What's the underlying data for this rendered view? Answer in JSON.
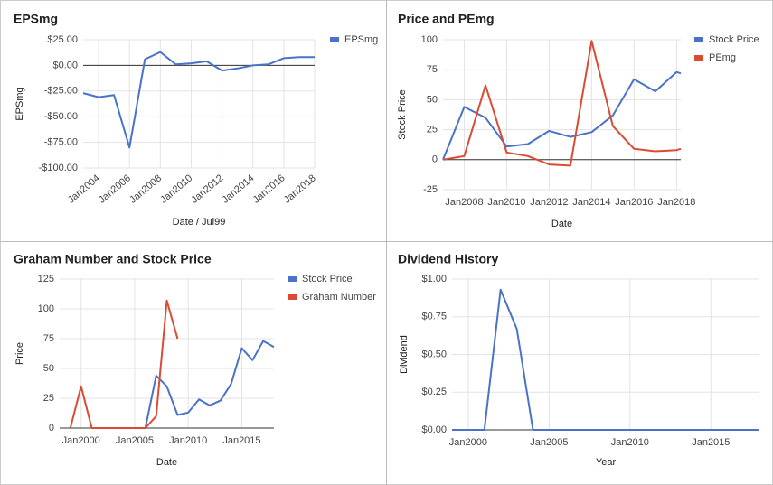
{
  "chart_data": [
    {
      "type": "line",
      "title": "EPSmg",
      "xlabel": "Date / Jul99",
      "ylabel": "EPSmg",
      "xlim": [
        2003,
        2018
      ],
      "xticks": [
        {
          "value": 2004,
          "label": "Jan2004"
        },
        {
          "value": 2006,
          "label": "Jan2006"
        },
        {
          "value": 2008,
          "label": "Jan2008"
        },
        {
          "value": 2010,
          "label": "Jan2010"
        },
        {
          "value": 2012,
          "label": "Jan2012"
        },
        {
          "value": 2014,
          "label": "Jan2014"
        },
        {
          "value": 2016,
          "label": "Jan2016"
        },
        {
          "value": 2018,
          "label": "Jan2018"
        }
      ],
      "ylim": [
        -100,
        25
      ],
      "yticks": [
        {
          "value": -100,
          "label": "-$100.00"
        },
        {
          "value": -75,
          "label": "-$75.00"
        },
        {
          "value": -50,
          "label": "-$50.00"
        },
        {
          "value": -25,
          "label": "-$25.00"
        },
        {
          "value": 0,
          "label": "$0.00"
        },
        {
          "value": 25,
          "label": "$25.00"
        }
      ],
      "grid": true,
      "series": [
        {
          "name": "EPSmg",
          "color": "#4a72c9",
          "x": [
            2003,
            2004,
            2005,
            2006,
            2007,
            2008,
            2009,
            2010,
            2011,
            2012,
            2013,
            2014,
            2015,
            2016,
            2017,
            2018
          ],
          "values": [
            -27,
            -31,
            -29,
            -80,
            6,
            13,
            1,
            2,
            4,
            -5,
            -3,
            0,
            1,
            7,
            8,
            8
          ]
        }
      ]
    },
    {
      "type": "line",
      "title": "Price and PEmg",
      "xlabel": "Date",
      "ylabel": "Stock Price",
      "xlim": [
        2007,
        2018.2
      ],
      "xticks": [
        {
          "value": 2008,
          "label": "Jan2008"
        },
        {
          "value": 2010,
          "label": "Jan2010"
        },
        {
          "value": 2012,
          "label": "Jan2012"
        },
        {
          "value": 2014,
          "label": "Jan2014"
        },
        {
          "value": 2016,
          "label": "Jan2016"
        },
        {
          "value": 2018,
          "label": "Jan2018"
        }
      ],
      "ylim": [
        -25,
        100
      ],
      "yticks": [
        -25,
        0,
        25,
        50,
        75,
        100
      ],
      "grid": true,
      "series": [
        {
          "name": "Stock Price",
          "color": "#4a72c9",
          "x": [
            2007,
            2008,
            2009,
            2010,
            2011,
            2012,
            2013,
            2014,
            2015,
            2016,
            2017,
            2018,
            2018.2
          ],
          "values": [
            0,
            44,
            35,
            11,
            13,
            24,
            19,
            23,
            37,
            67,
            57,
            73,
            72
          ]
        },
        {
          "name": "PEmg",
          "color": "#db4b33",
          "x": [
            2007,
            2008,
            2009,
            2010,
            2011,
            2012,
            2013,
            2014,
            2015,
            2016,
            2017,
            2018,
            2018.2
          ],
          "values": [
            0,
            3,
            62,
            6,
            3,
            -4,
            -5,
            99,
            28,
            9,
            7,
            8,
            9
          ]
        }
      ]
    },
    {
      "type": "line",
      "title": "Graham Number and Stock Price",
      "xlabel": "Date",
      "ylabel": "Price",
      "xlim": [
        1998,
        2018
      ],
      "xticks": [
        {
          "value": 2000,
          "label": "Jan2000"
        },
        {
          "value": 2005,
          "label": "Jan2005"
        },
        {
          "value": 2010,
          "label": "Jan2010"
        },
        {
          "value": 2015,
          "label": "Jan2015"
        }
      ],
      "ylim": [
        0,
        125
      ],
      "yticks": [
        0,
        25,
        50,
        75,
        100,
        125
      ],
      "grid": true,
      "series": [
        {
          "name": "Stock Price",
          "color": "#4a72c9",
          "x": [
            2006,
            2007,
            2008,
            2009,
            2010,
            2011,
            2012,
            2013,
            2014,
            2015,
            2016,
            2017,
            2018
          ],
          "values": [
            0,
            44,
            35,
            11,
            13,
            24,
            19,
            23,
            37,
            67,
            57,
            73,
            68
          ]
        },
        {
          "name": "Graham Number",
          "color": "#db4b33",
          "x": [
            1999,
            2000,
            2001,
            2002,
            2003,
            2004,
            2005,
            2006,
            2007,
            2008,
            2009
          ],
          "values": [
            0,
            35,
            0,
            0,
            0,
            0,
            0,
            0,
            10,
            107,
            75
          ]
        }
      ]
    },
    {
      "type": "line",
      "title": "Dividend History",
      "xlabel": "Year",
      "ylabel": "Dividend",
      "xlim": [
        1999,
        2018
      ],
      "xticks": [
        {
          "value": 2000,
          "label": "Jan2000"
        },
        {
          "value": 2005,
          "label": "Jan2005"
        },
        {
          "value": 2010,
          "label": "Jan2010"
        },
        {
          "value": 2015,
          "label": "Jan2015"
        }
      ],
      "ylim": [
        0,
        1
      ],
      "yticks": [
        {
          "value": 0,
          "label": "$0.00"
        },
        {
          "value": 0.25,
          "label": "$0.25"
        },
        {
          "value": 0.5,
          "label": "$0.50"
        },
        {
          "value": 0.75,
          "label": "$0.75"
        },
        {
          "value": 1,
          "label": "$1.00"
        }
      ],
      "grid": true,
      "series": [
        {
          "color": "#4a72c9",
          "x": [
            1999,
            2000,
            2001,
            2002,
            2003,
            2004,
            2005,
            2006,
            2007,
            2008,
            2009,
            2010,
            2011,
            2012,
            2013,
            2014,
            2015,
            2016,
            2017,
            2018
          ],
          "values": [
            0,
            0,
            0,
            0.93,
            0.67,
            0,
            0,
            0,
            0,
            0,
            0,
            0,
            0,
            0,
            0,
            0,
            0,
            0,
            0,
            0
          ]
        }
      ]
    }
  ]
}
